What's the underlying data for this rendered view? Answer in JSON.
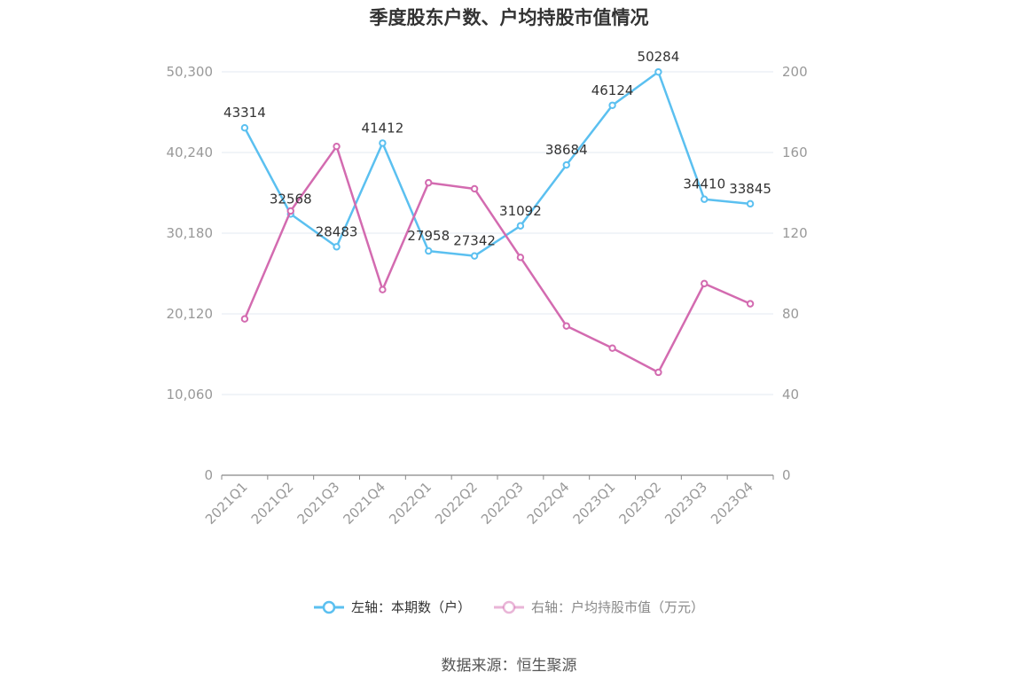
{
  "chart_data": {
    "type": "line",
    "title": "季度股东户数、户均持股市值情况",
    "categories": [
      "2021Q1",
      "2021Q2",
      "2021Q3",
      "2021Q4",
      "2022Q1",
      "2022Q2",
      "2022Q3",
      "2022Q4",
      "2023Q1",
      "2023Q2",
      "2023Q3",
      "2023Q4"
    ],
    "left_axis": {
      "ylim": [
        0,
        50300
      ],
      "ticks": [
        "0",
        "10,060",
        "20,120",
        "30,180",
        "40,240",
        "50,300"
      ],
      "tick_values": [
        0,
        10060,
        20120,
        30180,
        40240,
        50300
      ]
    },
    "right_axis": {
      "ylim": [
        0,
        200
      ],
      "ticks": [
        "0",
        "40",
        "80",
        "120",
        "160",
        "200"
      ],
      "tick_values": [
        0,
        40,
        80,
        120,
        160,
        200
      ]
    },
    "series": [
      {
        "name": "左轴：本期数（户）",
        "axis": "left",
        "color": "#5bc0f0",
        "values": [
          43314,
          32568,
          28483,
          41412,
          27958,
          27342,
          31092,
          38684,
          46124,
          50284,
          34410,
          33845
        ],
        "labels": [
          "43314",
          "32568",
          "28483",
          "41412",
          "27958",
          "27342",
          "31092",
          "38684",
          "46124",
          "50284",
          "34410",
          "33845"
        ]
      },
      {
        "name": "右轴：户均持股市值（万元）",
        "axis": "right",
        "color": "#d36bb0",
        "values": [
          77.5,
          131,
          163,
          92,
          145,
          142,
          108,
          74,
          63,
          51,
          95,
          85
        ]
      }
    ],
    "grid": true,
    "legend_position": "bottom"
  },
  "source_text": "数据来源：恒生聚源"
}
